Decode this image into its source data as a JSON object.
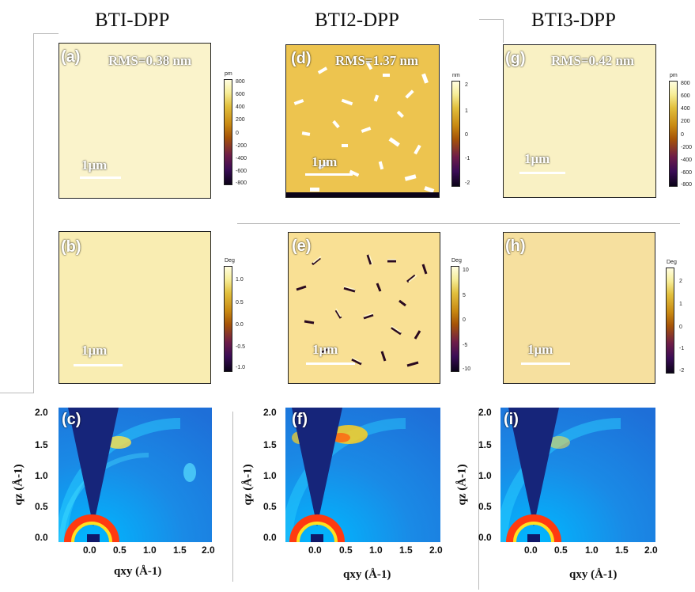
{
  "columns": [
    {
      "title": "BTI-DPP",
      "height": {
        "label": "(a)",
        "rms": "RMS=0.38 nm",
        "scalebar": "1μm",
        "unit": "pm",
        "ticks": [
          "800",
          "600",
          "400",
          "200",
          "0",
          "-200",
          "-400",
          "-600",
          "-800"
        ]
      },
      "phase": {
        "label": "(b)",
        "scalebar": "1μm",
        "unit": "Deg",
        "ticks": [
          "1.0",
          "0.5",
          "0.0",
          "-0.5",
          "-1.0"
        ]
      },
      "giwaxs": {
        "label": "(c)"
      }
    },
    {
      "title": "BTI2-DPP",
      "height": {
        "label": "(d)",
        "rms": "RMS=1.37 nm",
        "scalebar": "1μm",
        "unit": "nm",
        "ticks": [
          "2",
          "1",
          "0",
          "-1",
          "-2"
        ]
      },
      "phase": {
        "label": "(e)",
        "scalebar": "1μm",
        "unit": "Deg",
        "ticks": [
          "10",
          "5",
          "0",
          "-5",
          "-10"
        ]
      },
      "giwaxs": {
        "label": "(f)"
      }
    },
    {
      "title": "BTI3-DPP",
      "height": {
        "label": "(g)",
        "rms": "RMS=0.42 nm",
        "scalebar": "1μm",
        "unit": "pm",
        "ticks": [
          "800",
          "600",
          "400",
          "200",
          "0",
          "-200",
          "-400",
          "-600",
          "-800"
        ]
      },
      "phase": {
        "label": "(h)",
        "scalebar": "1μm",
        "unit": "Deg",
        "ticks": [
          "2",
          "1",
          "0",
          "-1",
          "-2"
        ]
      },
      "giwaxs": {
        "label": "(i)"
      }
    }
  ],
  "giwaxs_axes": {
    "xlabel": "qxy (Å-1)",
    "ylabel": "qz (Å-1)",
    "xticks": [
      "0.0",
      "0.5",
      "1.0",
      "1.5",
      "2.0"
    ],
    "yticks": [
      "2.0",
      "1.5",
      "1.0",
      "0.5",
      "0.0"
    ]
  },
  "colors": {
    "afm_dark": "#3a0a3a",
    "afm_mid": "#b06a10",
    "afm_light": "#f5e080",
    "giwaxs_bg": "#1f86e6",
    "giwaxs_cone": "#1a2a80"
  }
}
